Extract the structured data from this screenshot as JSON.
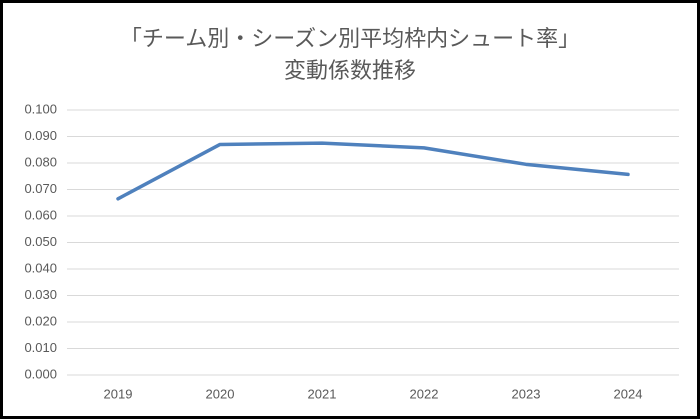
{
  "chart_data": {
    "type": "line",
    "title": [
      "「チーム別・シーズン別平均枠内シュート率」",
      "変動係数推移"
    ],
    "categories": [
      "2019",
      "2020",
      "2021",
      "2022",
      "2023",
      "2024"
    ],
    "series": [
      {
        "name": "変動係数",
        "color": "#4f81bd",
        "values": [
          0.0665,
          0.087,
          0.0875,
          0.0857,
          0.0795,
          0.0757
        ]
      }
    ],
    "ylim": [
      0,
      0.1
    ],
    "yticks": [
      {
        "value": 0,
        "label": "0.000"
      },
      {
        "value": 0.01,
        "label": "0.010"
      },
      {
        "value": 0.02,
        "label": "0.020"
      },
      {
        "value": 0.03,
        "label": "0.030"
      },
      {
        "value": 0.04,
        "label": "0.040"
      },
      {
        "value": 0.05,
        "label": "0.050"
      },
      {
        "value": 0.06,
        "label": "0.060"
      },
      {
        "value": 0.07,
        "label": "0.070"
      },
      {
        "value": 0.08,
        "label": "0.080"
      },
      {
        "value": 0.09,
        "label": "0.090"
      },
      {
        "value": 0.1,
        "label": "0.100"
      }
    ],
    "grid": true,
    "legend": false
  }
}
